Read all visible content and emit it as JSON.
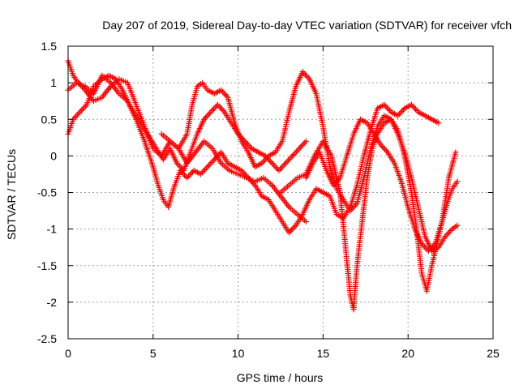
{
  "chart_data": {
    "type": "scatter",
    "title": "Day 207 of 2019, Sidereal Day-to-day VTEC variation (SDTVAR) for receiver vfch",
    "xlabel": "GPS time / hours",
    "ylabel": "SDTVAR / TECUs",
    "xlim": [
      0,
      25
    ],
    "ylim": [
      -2.5,
      1.5
    ],
    "xticks": [
      0,
      5,
      10,
      15,
      20,
      25
    ],
    "yticks": [
      -2.5,
      -2,
      -1.5,
      -1,
      -0.5,
      0,
      0.5,
      1,
      1.5
    ],
    "grid": true,
    "marker": "+",
    "color": "#ff0000",
    "series": [
      {
        "x": [
          0.0,
          0.3,
          0.7,
          1.1,
          1.5,
          2.0,
          2.4,
          2.8,
          3.2,
          3.6,
          4.0,
          4.4,
          4.8,
          5.2,
          5.6,
          6.0,
          6.4,
          6.8,
          7.2,
          7.6,
          8.0,
          8.4,
          8.8,
          9.2,
          9.6,
          10.0,
          10.4,
          10.8,
          11.2,
          11.6,
          12.0,
          12.4,
          12.8,
          13.2,
          13.6,
          14.0
        ],
        "y": [
          0.3,
          0.5,
          0.6,
          0.7,
          0.95,
          1.05,
          1.1,
          1.05,
          0.9,
          0.7,
          0.55,
          0.4,
          0.25,
          0.1,
          -0.05,
          0.1,
          -0.1,
          -0.2,
          0.05,
          0.3,
          0.5,
          0.6,
          0.7,
          0.6,
          0.45,
          0.3,
          0.2,
          0.1,
          0.05,
          0.0,
          -0.1,
          -0.2,
          -0.1,
          0.0,
          0.1,
          0.2
        ]
      },
      {
        "x": [
          0.0,
          0.3,
          0.6,
          1.0,
          1.5,
          2.0,
          2.5,
          3.0,
          3.5,
          4.0,
          4.5,
          5.0,
          5.5,
          6.0,
          6.5,
          7.0,
          7.5,
          8.0,
          8.5,
          9.0,
          9.5,
          10.0,
          10.5,
          11.0,
          11.5,
          12.0,
          12.5,
          13.0,
          13.5,
          14.0
        ],
        "y": [
          1.3,
          1.1,
          1.0,
          0.9,
          0.75,
          0.8,
          0.95,
          1.05,
          1.0,
          0.7,
          0.4,
          0.1,
          0.0,
          0.2,
          0.1,
          -0.1,
          0.05,
          0.2,
          0.1,
          -0.1,
          -0.2,
          -0.25,
          -0.3,
          -0.35,
          -0.3,
          -0.4,
          -0.55,
          -0.7,
          -0.8,
          -0.9
        ]
      },
      {
        "x": [
          0.0,
          0.5,
          1.0,
          1.5,
          2.0,
          2.5,
          3.0,
          3.5,
          4.0,
          4.5,
          5.0,
          5.3,
          5.6,
          5.9,
          6.2,
          6.6,
          7.0,
          7.4,
          7.8,
          8.2,
          8.6,
          9.0,
          9.4,
          9.8,
          10.2,
          10.6,
          11.0,
          11.4,
          11.8,
          12.2,
          12.6,
          13.0,
          13.4,
          13.8,
          14.2,
          14.6,
          15.0,
          15.4,
          15.8,
          16.2,
          16.6,
          17.0,
          17.4,
          17.8,
          18.2,
          18.6,
          19.0,
          19.4,
          19.8,
          20.2,
          20.6,
          21.0,
          21.4,
          21.8
        ],
        "y": [
          0.9,
          1.0,
          0.95,
          0.85,
          1.1,
          1.0,
          0.85,
          0.75,
          0.5,
          0.2,
          -0.15,
          -0.4,
          -0.6,
          -0.7,
          -0.45,
          -0.2,
          -0.3,
          -0.2,
          -0.25,
          -0.15,
          -0.05,
          0.05,
          -0.1,
          -0.15,
          -0.2,
          -0.3,
          -0.4,
          -0.55,
          -0.6,
          -0.75,
          -0.9,
          -1.05,
          -0.95,
          -0.8,
          -0.6,
          -0.45,
          -0.5,
          -0.55,
          -0.8,
          -0.85,
          -0.7,
          -0.4,
          0.0,
          0.35,
          0.65,
          0.7,
          0.6,
          0.55,
          0.65,
          0.7,
          0.6,
          0.55,
          0.5,
          0.45
        ]
      },
      {
        "x": [
          5.5,
          6.0,
          6.5,
          7.0,
          7.3,
          7.6,
          7.9,
          8.2,
          8.6,
          9.0,
          9.4,
          9.8,
          10.2,
          10.6,
          11.0,
          11.4,
          11.8,
          12.2,
          12.6,
          13.0,
          13.4,
          13.8,
          14.2,
          14.6,
          15.0,
          15.4,
          15.8,
          16.2,
          16.6,
          17.0,
          17.4,
          17.8,
          18.2,
          18.6,
          19.0,
          19.4,
          19.8,
          20.2,
          20.6,
          21.0,
          21.4,
          21.8,
          22.2,
          22.6,
          22.9
        ],
        "y": [
          0.3,
          0.2,
          0.1,
          0.3,
          0.7,
          0.95,
          1.0,
          0.9,
          0.85,
          0.9,
          0.8,
          0.45,
          0.2,
          0.05,
          -0.15,
          -0.1,
          0.0,
          0.05,
          0.2,
          0.6,
          0.95,
          1.15,
          1.05,
          0.85,
          0.4,
          -0.15,
          -0.45,
          -0.6,
          -0.75,
          -0.65,
          -0.3,
          0.1,
          0.4,
          0.55,
          0.5,
          0.3,
          0.05,
          -0.3,
          -0.7,
          -1.1,
          -1.3,
          -1.25,
          -1.1,
          -1.0,
          -0.95
        ]
      },
      {
        "x": [
          12.5,
          13.0,
          13.5,
          14.0,
          14.5,
          15.0,
          15.5,
          16.0,
          16.3,
          16.6,
          16.8,
          17.0,
          17.3,
          17.6,
          17.9,
          18.2,
          18.6,
          19.0,
          19.4,
          19.8,
          20.2,
          20.5,
          20.8,
          21.1,
          21.4,
          21.7,
          22.0,
          22.3,
          22.6,
          22.9
        ],
        "y": [
          -0.5,
          -0.4,
          -0.3,
          -0.25,
          0.0,
          0.2,
          0.0,
          -0.5,
          -1.2,
          -1.9,
          -2.1,
          -1.5,
          -0.9,
          -0.3,
          0.1,
          0.3,
          0.45,
          0.5,
          0.35,
          0.0,
          -0.5,
          -1.0,
          -1.6,
          -1.85,
          -1.5,
          -1.2,
          -0.9,
          -0.65,
          -0.45,
          -0.35
        ]
      },
      {
        "x": [
          14.0,
          14.4,
          14.8,
          15.2,
          15.6,
          16.0,
          16.4,
          16.8,
          17.2,
          17.6,
          18.0,
          18.4,
          18.8,
          19.2,
          19.6,
          20.0,
          20.4,
          20.8,
          21.2,
          21.6,
          22.0,
          22.4,
          22.8
        ],
        "y": [
          -0.3,
          -0.1,
          0.05,
          -0.2,
          -0.4,
          -0.3,
          0.0,
          0.3,
          0.5,
          0.45,
          0.3,
          0.15,
          0.05,
          -0.1,
          -0.35,
          -0.7,
          -1.0,
          -1.2,
          -1.3,
          -1.2,
          -0.9,
          -0.3,
          0.05
        ]
      }
    ]
  }
}
